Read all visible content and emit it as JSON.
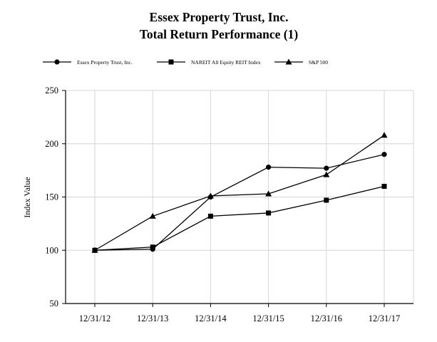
{
  "chart_data": {
    "type": "line",
    "title": "Essex Property Trust, Inc.",
    "subtitle": "Total Return Performance (1)",
    "xlabel": "",
    "ylabel": "Index Value",
    "categories": [
      "12/31/12",
      "12/31/13",
      "12/31/14",
      "12/31/15",
      "12/31/16",
      "12/31/17"
    ],
    "ylim": [
      50,
      250
    ],
    "yticks": [
      "50",
      "100",
      "150",
      "200",
      "250"
    ],
    "grid": true,
    "legend_position": "top",
    "series": [
      {
        "name": "Essex Property Trust, Inc.",
        "marker": "circle",
        "values": [
          100,
          101,
          150,
          178,
          177,
          190
        ]
      },
      {
        "name": "NAREIT All Equity REIT Index",
        "marker": "square",
        "values": [
          100,
          103,
          132,
          135,
          147,
          160
        ]
      },
      {
        "name": "S&P 500",
        "marker": "triangle",
        "values": [
          100,
          132,
          151,
          153,
          171,
          208
        ]
      }
    ]
  }
}
